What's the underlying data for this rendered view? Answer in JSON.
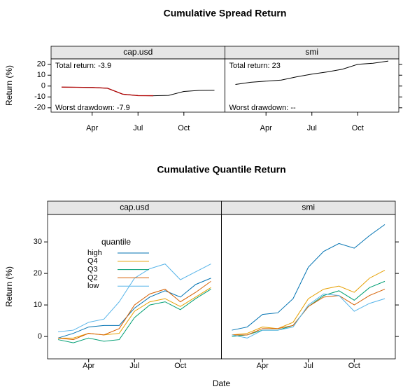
{
  "chart_data": [
    {
      "type": "line",
      "title": "Cumulative Spread Return",
      "ylabel": "Return (%)",
      "categories": [
        null,
        null,
        "Apr",
        null,
        null,
        "Jul",
        null,
        null,
        "Oct",
        null,
        null
      ],
      "ylim": [
        -24,
        25
      ],
      "yticks": [
        -20,
        -10,
        0,
        10,
        20
      ],
      "color": "#000000",
      "panels": [
        {
          "strip": "cap.usd",
          "values": [
            -1,
            -1.1,
            -1.3,
            -2,
            -7.5,
            -8.8,
            -8.9,
            -8.6,
            -5,
            -4,
            -3.9
          ],
          "annotations": [
            "Total return: -3.9",
            "Worst drawdown: -7.9"
          ],
          "drawdown_color": "#b00000"
        },
        {
          "strip": "smi",
          "values": [
            1.5,
            3.5,
            4.5,
            5.5,
            8.5,
            11,
            13,
            15.5,
            20,
            21,
            23
          ],
          "annotations": [
            "Total return: 23",
            "Worst drawdown: --"
          ]
        }
      ]
    },
    {
      "type": "line",
      "title": "Cumulative Quantile Return",
      "ylabel": "Return (%)",
      "xlabel": "Date",
      "categories": [
        null,
        null,
        "Apr",
        null,
        null,
        "Jul",
        null,
        null,
        "Oct",
        null,
        null
      ],
      "ylim": [
        -7.1,
        38.7
      ],
      "yticks": [
        0,
        10,
        20,
        30
      ],
      "legend_title": "quantile",
      "series": [
        {
          "name": "high",
          "color": "#0072B2"
        },
        {
          "name": "Q4",
          "color": "#E69F00"
        },
        {
          "name": "Q3",
          "color": "#009E73"
        },
        {
          "name": "Q2",
          "color": "#D55E00"
        },
        {
          "name": "low",
          "color": "#56B4E9"
        }
      ],
      "panels": [
        {
          "strip": "cap.usd",
          "values": [
            [
              -0.5,
              1,
              3,
              3.5,
              3.5,
              9,
              12.5,
              14.5,
              12.5,
              16.5,
              18.5
            ],
            [
              -0.5,
              -0.5,
              1,
              0.5,
              1,
              8,
              11,
              12,
              9.5,
              12.5,
              15.5
            ],
            [
              -1,
              -2,
              -0.5,
              -1.5,
              -1,
              6,
              10,
              11,
              8.5,
              12,
              15
            ],
            [
              -0.5,
              -1,
              1,
              0.5,
              2.5,
              10,
              13.5,
              15,
              11,
              14,
              17.5
            ],
            [
              1.5,
              2,
              4.5,
              5.5,
              11,
              18.5,
              21.5,
              23,
              18,
              20.5,
              23
            ]
          ]
        },
        {
          "strip": "smi",
          "values": [
            [
              2,
              3,
              7,
              7.5,
              12,
              22,
              27,
              29.5,
              28,
              32,
              35.5
            ],
            [
              0.5,
              1,
              3,
              2.5,
              4.5,
              12,
              15,
              16,
              14,
              18.5,
              21
            ],
            [
              0,
              0.5,
              2,
              2,
              3.5,
              9.5,
              13,
              14.5,
              11.5,
              15.5,
              17.5
            ],
            [
              0.5,
              0.5,
              2.5,
              2.5,
              3.5,
              9.5,
              12.5,
              13,
              10,
              13,
              15
            ],
            [
              0.5,
              -0.5,
              2,
              2,
              3,
              10,
              13.5,
              13,
              8,
              10.5,
              12
            ]
          ]
        }
      ]
    }
  ]
}
